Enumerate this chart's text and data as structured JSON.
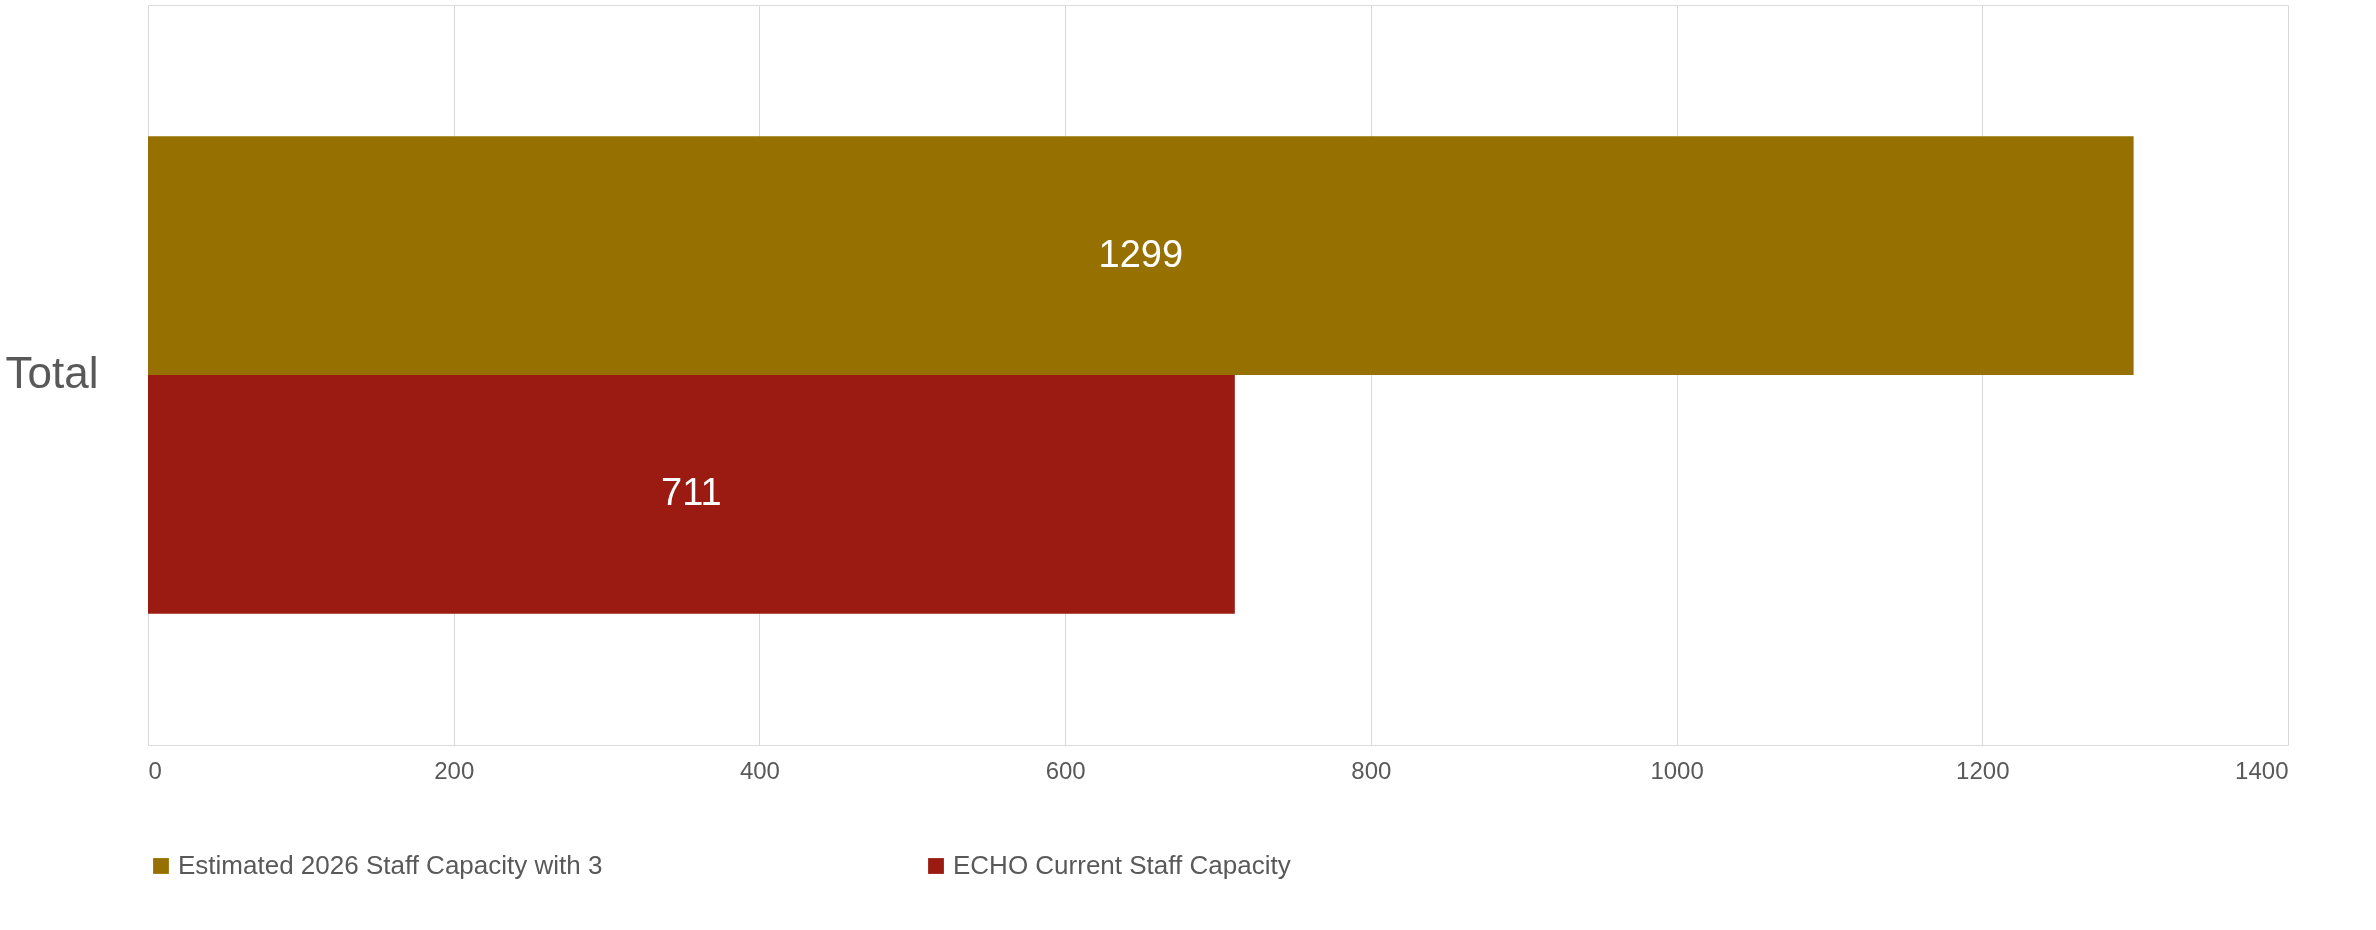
{
  "chart_data": {
    "type": "bar",
    "orientation": "horizontal",
    "categories": [
      "Total"
    ],
    "series": [
      {
        "name": "Estimated 2026 Staff Capacity with 3",
        "color": "#967000",
        "values": [
          1299
        ]
      },
      {
        "name": "ECHO Current Staff Capacity",
        "color": "#9b1b12",
        "values": [
          711
        ]
      }
    ],
    "xlim": [
      0,
      1400
    ],
    "xticks": [
      0,
      200,
      400,
      600,
      800,
      1000,
      1200,
      1400
    ],
    "grid": "x",
    "legend": "bottom",
    "data_labels": true
  }
}
